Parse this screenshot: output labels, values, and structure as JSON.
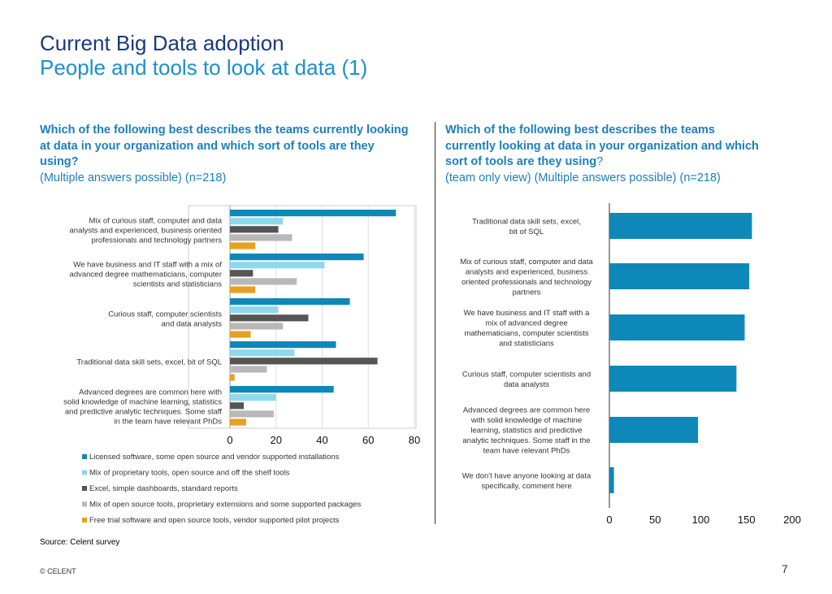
{
  "header": {
    "title": "Current Big Data adoption",
    "subtitle": "People and tools to look at data (1)"
  },
  "left": {
    "question": "Which of the following best describes the teams currently looking at data in your organization and which sort of tools are they using?",
    "note": "(Multiple answers possible) (n=218)"
  },
  "right": {
    "question": "Which of the following best describes the teams currently looking at data in your organization and which sort of tools are they using",
    "question_mark": "?",
    "note": "(team only view) (Multiple answers possible) (n=218)"
  },
  "footer": {
    "source": "Source: Celent survey",
    "copyright": "© CELENT",
    "page": "7"
  },
  "chart_data": [
    {
      "type": "bar",
      "orientation": "horizontal",
      "categories": [
        "Mix of curious staff, computer and data analysts and experienced, business oriented professionals and technology partners",
        "We have business and IT staff with a mix of advanced degree mathematicians, computer scientists and statisticians",
        "Curious staff, computer scientists and data analysts",
        "Traditional data skill sets, excel, bit of SQL",
        "Advanced degrees are common here with solid knowledge of machine learning, statistics and predictive analytic techniques. Some staff in the team have relevant PhDs"
      ],
      "category_lines": [
        [
          "Mix of curious staff, computer and data",
          "analysts and experienced, business oriented",
          "professionals and technology partners"
        ],
        [
          "We have business and IT staff with a mix of",
          "advanced degree mathematicians, computer",
          "scientists and statisticians"
        ],
        [
          "Curious staff, computer scientists",
          "and data analysts"
        ],
        [
          "Traditional data skill sets, excel, bit of SQL"
        ],
        [
          "Advanced degrees are common here with",
          "solid knowledge of machine learning, statistics",
          "and predictive analytic techniques. Some staff",
          "in the team have relevant PhDs"
        ]
      ],
      "series": [
        {
          "name": "Licensed software, some open source and vendor supported installations",
          "color": "#0e88b8",
          "values": [
            72,
            58,
            52,
            46,
            45
          ]
        },
        {
          "name": "Mix of proprietary tools, open source and off the shelf tools",
          "color": "#8fd8ee",
          "values": [
            23,
            41,
            21,
            28,
            20
          ]
        },
        {
          "name": "Excel, simple dashboards, standard reports",
          "color": "#555555",
          "values": [
            21,
            10,
            34,
            64,
            6
          ]
        },
        {
          "name": "Mix of open source tools, proprietary extensions and some supported packages",
          "color": "#b8b8b8",
          "values": [
            27,
            29,
            23,
            16,
            19
          ]
        },
        {
          "name": "Free trial software and open source tools, vendor supported pilot projects",
          "color": "#e8a020",
          "values": [
            11,
            11,
            9,
            2,
            7
          ]
        }
      ],
      "xlim": [
        0,
        80
      ],
      "xticks": [
        "0",
        "20",
        "40",
        "60",
        "80"
      ],
      "legend": "bottom",
      "grid": true
    },
    {
      "type": "bar",
      "orientation": "horizontal",
      "categories": [
        "Traditional data skill sets, excel, bit of SQL",
        "Mix of curious staff, computer and data analysts and experienced, business oriented professionals and technology partners",
        "We have business and IT staff with a mix of advanced degree mathematicians, computer scientists and statisticians",
        "Curious staff, computer scientists and data analysts",
        "Advanced degrees are common here with solid knowledge of machine learning, statistics and predictive analytic techniques. Some staff in the team have relevant PhDs",
        "We don't have anyone looking at data specifically, comment here"
      ],
      "category_lines": [
        [
          "Traditional data skill sets, excel,",
          "bit of SQL"
        ],
        [
          "Mix of curious staff, computer and data",
          "analysts and experienced, business",
          "oriented professionals and technology",
          "partners"
        ],
        [
          "We have business and IT staff with a",
          "mix of advanced degree",
          "mathematicians, computer scientists",
          "and statisticians"
        ],
        [
          "Curious staff, computer scientists and",
          "data analysts"
        ],
        [
          "Advanced degrees are common here",
          "with solid knowledge of machine",
          "learning, statistics and predictive",
          "analytic techniques. Some staff in the",
          "team have relevant PhDs"
        ],
        [
          "We don't have anyone looking at data",
          "specifically, comment here"
        ]
      ],
      "values": [
        156,
        153,
        148,
        139,
        97,
        5
      ],
      "color": "#0e88b8",
      "xlim": [
        0,
        200
      ],
      "xticks": [
        "0",
        "50",
        "100",
        "150",
        "200"
      ],
      "grid": false
    }
  ]
}
